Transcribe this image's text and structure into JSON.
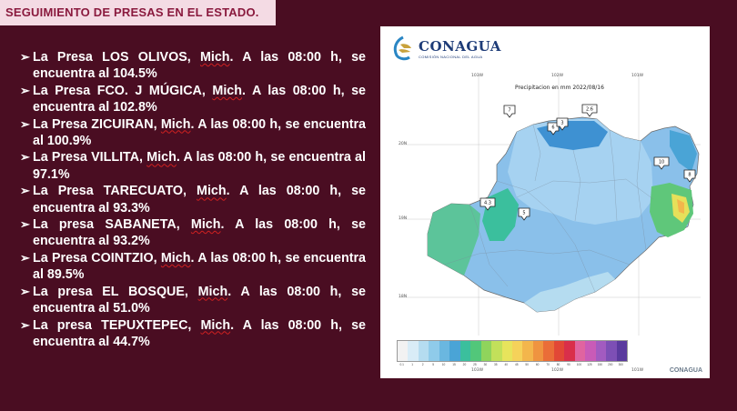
{
  "header": {
    "title": "SEGUIMIENTO DE PRESAS EN EL ESTADO."
  },
  "bullets": [
    {
      "arrow": "➢",
      "text_pre": " La Presa LOS OLIVOS, ",
      "mich": "Mich",
      "text_post": ". A las 08:00 h, se encuentra al 104.5%"
    },
    {
      "arrow": "➢",
      "text_pre": "La Presa FCO. J MÚGICA, ",
      "mich": "Mich",
      "text_post": ". A las 08:00 h, se encuentra al 102.8%"
    },
    {
      "arrow": "➢",
      "text_pre": " La Presa ZICUIRAN, ",
      "mich": "Mich",
      "text_post": ". A las 08:00 h, se encuentra al 100.9%"
    },
    {
      "arrow": "➢",
      "text_pre": "La Presa VILLITA, ",
      "mich": "Mich",
      "text_post": ". A las 08:00 h, se encuentra al 97.1%"
    },
    {
      "arrow": "➢",
      "text_pre": " La Presa TARECUATO, ",
      "mich": "Mich",
      "text_post": ". A las 08:00 h, se encuentra al 93.3%"
    },
    {
      "arrow": "➢",
      "text_pre": "La presa SABANETA, ",
      "mich": "Mich",
      "text_post": ". A las 08:00 h, se encuentra al 93.2%"
    },
    {
      "arrow": "➢",
      "text_pre": "La Presa COINTZIO, ",
      "mich": "Mich",
      "text_post": ". A las 08:00 h, se encuentra al 89.5%"
    },
    {
      "arrow": "➢",
      "text_pre": "La presa EL BOSQUE, ",
      "mich": "Mich",
      "text_post": ". A las 08:00 h, se encuentra al 51.0%"
    },
    {
      "arrow": "➢",
      "text_pre": "La presa TEPUXTEPEC, ",
      "mich": "Mich",
      "text_post": ". A las 08:00 h, se encuentra al 44.7%"
    }
  ],
  "map": {
    "logo": "CONAGUA",
    "logo_sub": "COMISIÓN NACIONAL DEL AGUA",
    "title": "Precipitacion en mm  2022/08/16",
    "longitudes": [
      "103W",
      "102W",
      "101W"
    ],
    "latitudes": [
      "20N",
      "19N",
      "18N"
    ],
    "markers": [
      "7",
      "6",
      "3",
      "2.6",
      "10",
      "8",
      "4.3",
      "5"
    ],
    "legend_colors": [
      "#f2f2f2",
      "#d9ecf7",
      "#b5dcf0",
      "#8fcbea",
      "#6ab7e0",
      "#4aa4d6",
      "#3bbf9d",
      "#52c77a",
      "#8fd45c",
      "#c2e05a",
      "#e7e45c",
      "#f5d25a",
      "#f3b64c",
      "#ef9440",
      "#ea6d38",
      "#e24736",
      "#d92f4a",
      "#e064a0",
      "#c95bb7",
      "#a25bc0",
      "#7d4fb5",
      "#5a3a9e"
    ],
    "legend_labels": [
      "0.1",
      "1",
      "2",
      "5",
      "10",
      "15",
      "20",
      "25",
      "30",
      "35",
      "40",
      "45",
      "50",
      "60",
      "70",
      "80",
      "90",
      "100",
      "125",
      "150",
      "200",
      "300"
    ],
    "footer": "CONAGUA"
  }
}
